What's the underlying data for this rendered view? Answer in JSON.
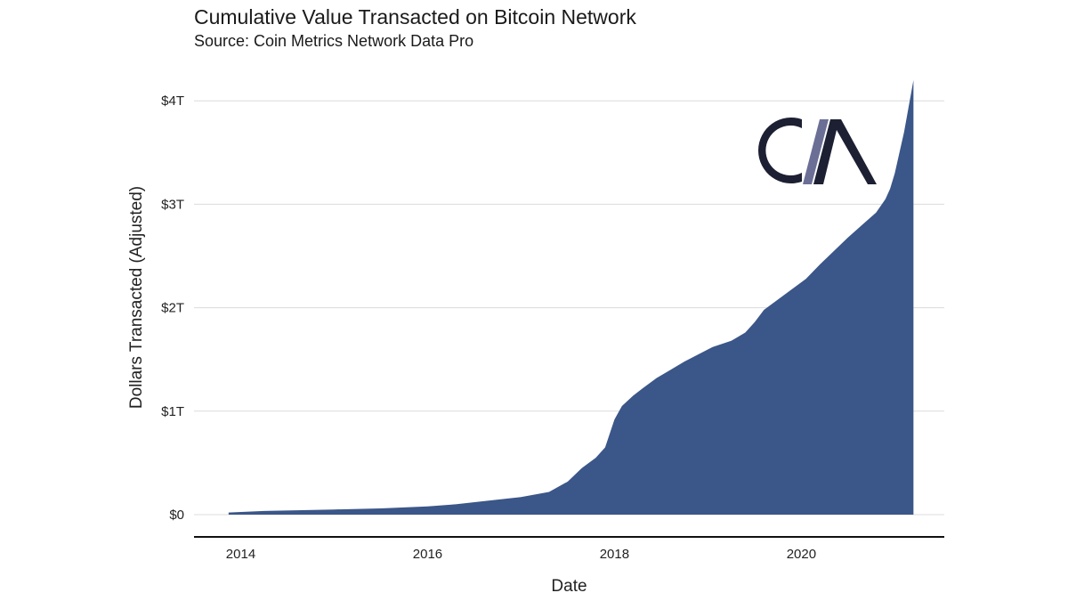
{
  "chart_data": {
    "type": "area",
    "title": "Cumulative Value Transacted on Bitcoin Network",
    "subtitle": "Source: Coin Metrics Network Data Pro",
    "xlabel": "Date",
    "ylabel": "Dollars Transacted (Adjusted)",
    "xlim": [
      2013.5,
      2021.53
    ],
    "ylim": [
      0,
      4.2
    ],
    "x_ticks": [
      {
        "value": 2014,
        "label": "2014"
      },
      {
        "value": 2016,
        "label": "2016"
      },
      {
        "value": 2018,
        "label": "2018"
      },
      {
        "value": 2020,
        "label": "2020"
      }
    ],
    "y_ticks": [
      {
        "value": 0,
        "label": "$0"
      },
      {
        "value": 1,
        "label": "$1T"
      },
      {
        "value": 2,
        "label": "$2T"
      },
      {
        "value": 3,
        "label": "$3T"
      },
      {
        "value": 4,
        "label": "$4T"
      }
    ],
    "grid": "horizontal",
    "series": [
      {
        "fill_color": "#3b5688",
        "x": [
          2013.87,
          2014.25,
          2015.0,
          2015.5,
          2016.0,
          2016.3,
          2016.6,
          2017.0,
          2017.3,
          2017.5,
          2017.65,
          2017.8,
          2017.9,
          2018.0,
          2018.08,
          2018.2,
          2018.3,
          2018.45,
          2018.6,
          2018.75,
          2018.9,
          2019.05,
          2019.25,
          2019.4,
          2019.5,
          2019.6,
          2019.75,
          2019.9,
          2020.05,
          2020.2,
          2020.35,
          2020.5,
          2020.65,
          2020.8,
          2020.9,
          2020.95,
          2021.0,
          2021.05,
          2021.1,
          2021.15,
          2021.2
        ],
        "y": [
          0.02,
          0.035,
          0.05,
          0.06,
          0.08,
          0.1,
          0.13,
          0.17,
          0.22,
          0.32,
          0.45,
          0.55,
          0.65,
          0.92,
          1.05,
          1.15,
          1.22,
          1.32,
          1.4,
          1.48,
          1.55,
          1.62,
          1.68,
          1.76,
          1.86,
          1.98,
          2.08,
          2.18,
          2.28,
          2.42,
          2.55,
          2.68,
          2.8,
          2.92,
          3.05,
          3.15,
          3.3,
          3.5,
          3.7,
          3.95,
          4.2
        ]
      }
    ]
  },
  "logo": {
    "text_c": "C",
    "text_m": "M",
    "dark_color": "#1d2033",
    "slash_color": "#6b6f96"
  }
}
